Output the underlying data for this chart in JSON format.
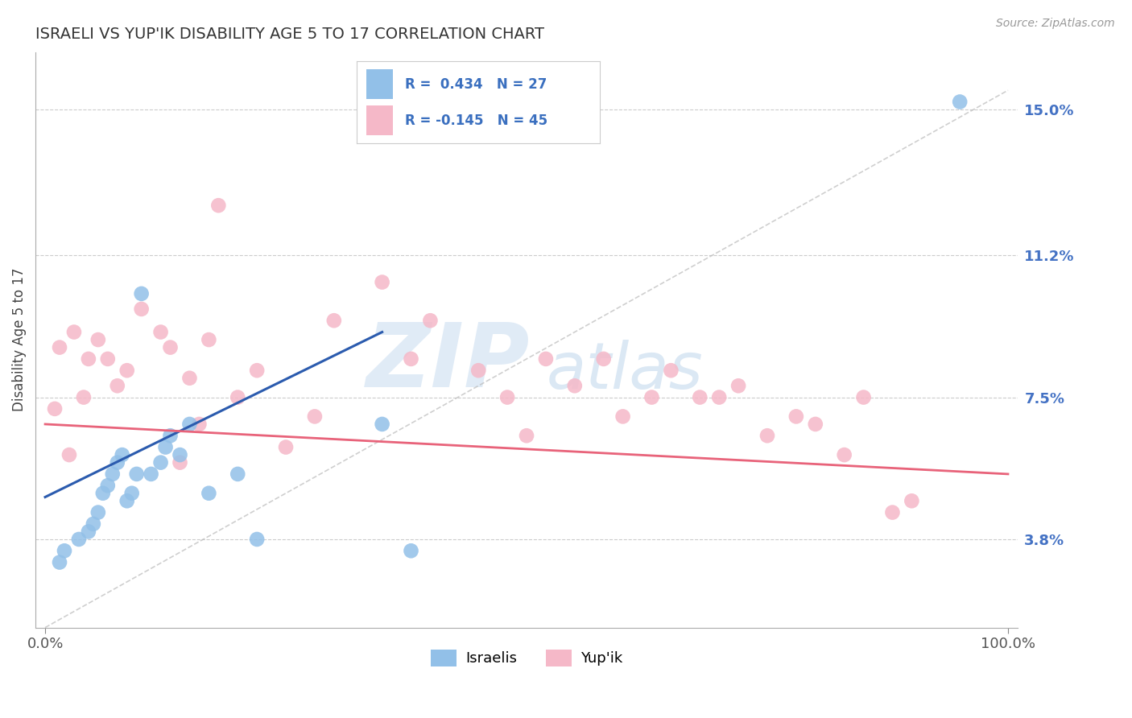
{
  "title": "ISRAELI VS YUP'IK DISABILITY AGE 5 TO 17 CORRELATION CHART",
  "source": "Source: ZipAtlas.com",
  "ylabel": "Disability Age 5 to 17",
  "xlabel": "",
  "xlim": [
    -1.0,
    101.0
  ],
  "ylim": [
    1.5,
    16.5
  ],
  "yticks": [
    3.8,
    7.5,
    11.2,
    15.0
  ],
  "ytick_labels": [
    "3.8%",
    "7.5%",
    "11.2%",
    "15.0%"
  ],
  "xticks": [
    0.0,
    100.0
  ],
  "xtick_labels": [
    "0.0%",
    "100.0%"
  ],
  "R_israeli": 0.434,
  "N_israeli": 27,
  "R_yupik": -0.145,
  "N_yupik": 45,
  "color_israeli": "#92C0E8",
  "color_yupik": "#F5B8C8",
  "color_line_israeli": "#2B5BAE",
  "color_line_yupik": "#E8637A",
  "color_diag": "#BBBBBB",
  "israeli_x": [
    1.5,
    2.0,
    3.5,
    4.5,
    5.0,
    5.5,
    6.0,
    6.5,
    7.0,
    7.5,
    8.0,
    8.5,
    9.0,
    9.5,
    10.0,
    11.0,
    12.0,
    12.5,
    13.0,
    14.0,
    15.0,
    17.0,
    20.0,
    22.0,
    35.0,
    38.0,
    95.0
  ],
  "israeli_y": [
    3.2,
    3.5,
    3.8,
    4.0,
    4.2,
    4.5,
    5.0,
    5.2,
    5.5,
    5.8,
    6.0,
    4.8,
    5.0,
    5.5,
    10.2,
    5.5,
    5.8,
    6.2,
    6.5,
    6.0,
    6.8,
    5.0,
    5.5,
    3.8,
    6.8,
    3.5,
    15.2
  ],
  "yupik_x": [
    1.0,
    1.5,
    2.5,
    3.0,
    4.0,
    4.5,
    5.5,
    6.5,
    7.5,
    8.5,
    10.0,
    12.0,
    13.0,
    14.0,
    15.0,
    16.0,
    17.0,
    18.0,
    20.0,
    22.0,
    25.0,
    28.0,
    30.0,
    35.0,
    38.0,
    40.0,
    45.0,
    48.0,
    50.0,
    52.0,
    55.0,
    58.0,
    60.0,
    63.0,
    65.0,
    68.0,
    70.0,
    72.0,
    75.0,
    78.0,
    80.0,
    83.0,
    85.0,
    88.0,
    90.0
  ],
  "yupik_y": [
    7.2,
    8.8,
    6.0,
    9.2,
    7.5,
    8.5,
    9.0,
    8.5,
    7.8,
    8.2,
    9.8,
    9.2,
    8.8,
    5.8,
    8.0,
    6.8,
    9.0,
    12.5,
    7.5,
    8.2,
    6.2,
    7.0,
    9.5,
    10.5,
    8.5,
    9.5,
    8.2,
    7.5,
    6.5,
    8.5,
    7.8,
    8.5,
    7.0,
    7.5,
    8.2,
    7.5,
    7.5,
    7.8,
    6.5,
    7.0,
    6.8,
    6.0,
    7.5,
    4.5,
    4.8
  ],
  "israeli_line_x0": 0.0,
  "israeli_line_y0": 4.9,
  "israeli_line_x1": 35.0,
  "israeli_line_y1": 9.2,
  "yupik_line_x0": 0.0,
  "yupik_line_y0": 6.8,
  "yupik_line_x1": 100.0,
  "yupik_line_y1": 5.5
}
